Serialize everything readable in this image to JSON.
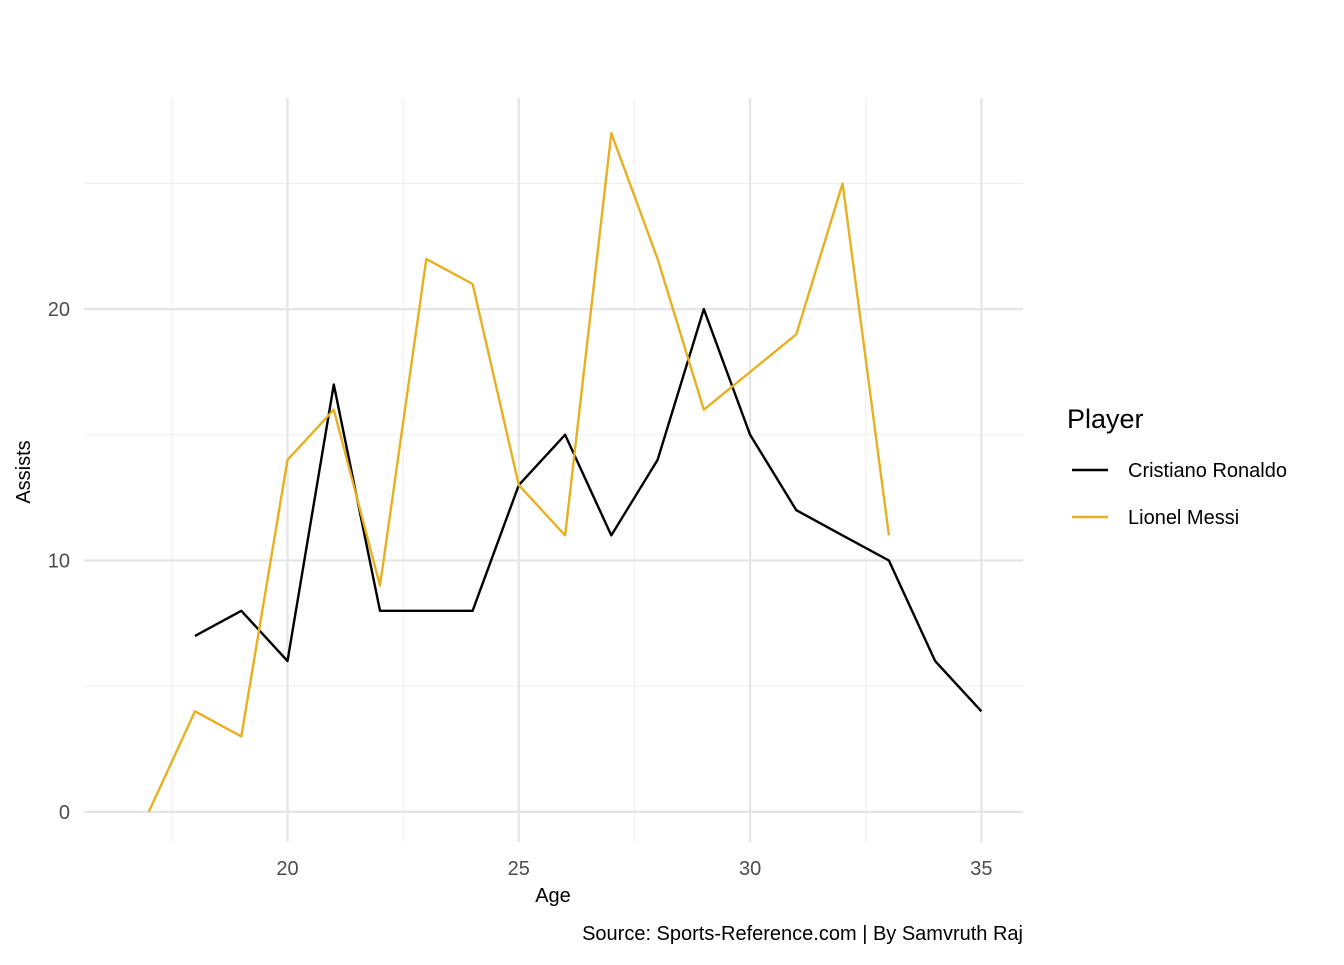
{
  "chart_data": {
    "type": "line",
    "title": "",
    "xlabel": "Age",
    "ylabel": "Assists",
    "caption": "Source: Sports-Reference.com | By Samvruth Raj",
    "xlim": [
      15.6,
      35.9
    ],
    "ylim": [
      -1.2,
      28.4
    ],
    "x_ticks": [
      20,
      25,
      30,
      35
    ],
    "y_ticks": [
      0,
      10,
      20
    ],
    "x_minor_ticks": [
      17.5,
      22.5,
      27.5,
      32.5
    ],
    "y_minor_ticks": [
      5,
      15,
      25
    ],
    "grid": true,
    "legend": {
      "title": "Player",
      "position": "right"
    },
    "series": [
      {
        "name": "Cristiano Ronaldo",
        "color": "#000000",
        "points": [
          [
            18,
            7
          ],
          [
            19,
            8
          ],
          [
            20,
            6
          ],
          [
            21,
            17
          ],
          [
            22,
            8
          ],
          [
            23,
            8
          ],
          [
            24,
            8
          ],
          [
            25,
            13
          ],
          [
            26,
            15
          ],
          [
            27,
            11
          ],
          [
            28,
            14
          ],
          [
            29,
            20
          ],
          [
            30,
            15
          ],
          [
            31,
            12
          ],
          [
            32,
            11
          ],
          [
            33,
            10
          ],
          [
            34,
            6
          ],
          [
            35,
            4
          ]
        ]
      },
      {
        "name": "Lionel Messi",
        "color": "#E6B020",
        "points": [
          [
            17,
            0
          ],
          [
            18,
            4
          ],
          [
            19,
            3
          ],
          [
            20,
            14
          ],
          [
            21,
            16
          ],
          [
            22,
            9
          ],
          [
            23,
            22
          ],
          [
            24,
            21
          ],
          [
            25,
            13
          ],
          [
            26,
            11
          ],
          [
            27,
            27
          ],
          [
            28,
            22
          ],
          [
            29,
            16
          ],
          [
            30,
            17.5
          ],
          [
            31,
            19
          ],
          [
            32,
            25
          ],
          [
            33,
            11
          ]
        ]
      }
    ]
  }
}
